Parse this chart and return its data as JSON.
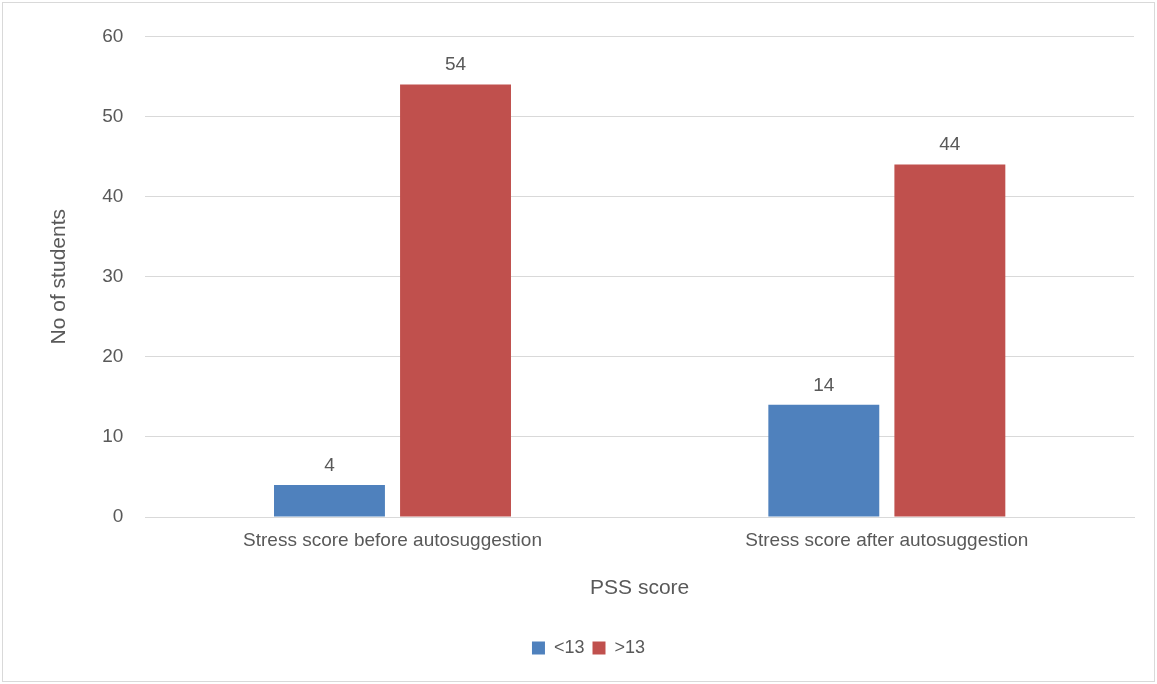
{
  "chart_data": {
    "type": "bar",
    "xlabel": "PSS score",
    "ylabel": "No of students",
    "categories": [
      "Stress score before autosuggestion",
      "Stress score after autosuggestion"
    ],
    "series": [
      {
        "name": "<13",
        "color": "#4f81bd",
        "values": [
          4,
          14
        ]
      },
      {
        "name": ">13",
        "color": "#c0504d",
        "values": [
          54,
          44
        ]
      }
    ],
    "ylim": [
      0,
      60
    ],
    "yticks": [
      0,
      10,
      20,
      30,
      40,
      50,
      60
    ],
    "grid": "y",
    "legend": "bottom",
    "data_labels": true
  }
}
